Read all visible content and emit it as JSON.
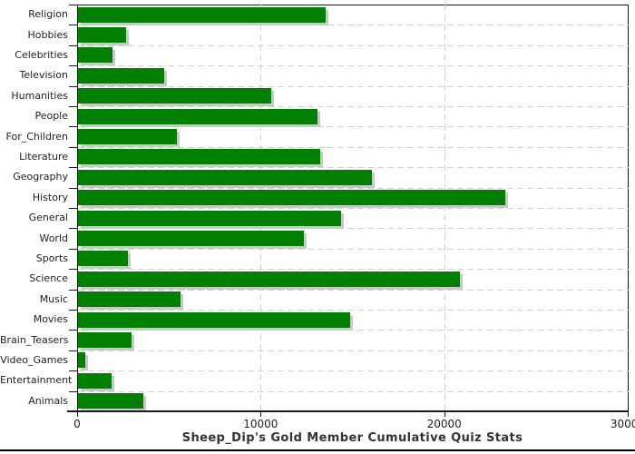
{
  "chart_data": {
    "type": "bar",
    "orientation": "horizontal",
    "title": "Sheep_Dip's Gold Member Cumulative Quiz Stats",
    "categories": [
      "Religion",
      "Hobbies",
      "Celebrities",
      "Television",
      "Humanities",
      "People",
      "For_Children",
      "Literature",
      "Geography",
      "History",
      "General",
      "World",
      "Sports",
      "Science",
      "Music",
      "Movies",
      "Brain_Teasers",
      "Video_Games",
      "Entertainment",
      "Animals"
    ],
    "values": [
      13500,
      2600,
      1900,
      4700,
      10550,
      13050,
      5400,
      13200,
      16000,
      23300,
      14350,
      12300,
      2700,
      20800,
      5600,
      14850,
      2900,
      400,
      1850,
      3550
    ],
    "xlabel": "",
    "ylabel": "",
    "xlim": [
      0,
      30000
    ],
    "x_ticks": [
      0,
      10000,
      20000,
      30000
    ],
    "x_tick_labels": [
      "0",
      "10000",
      "20000",
      "30000"
    ],
    "grid": "dashed light-gray: horizontal at category boundaries, vertical at x ticks",
    "legend": "none",
    "colors": {
      "bar": "#008000",
      "bar_shadow": "#c9c9c9",
      "grid": "#d2d2d2",
      "axis": "#1a1a1a",
      "text": "#1f1f1f",
      "title": "#333333",
      "background": "#ffffff"
    }
  }
}
